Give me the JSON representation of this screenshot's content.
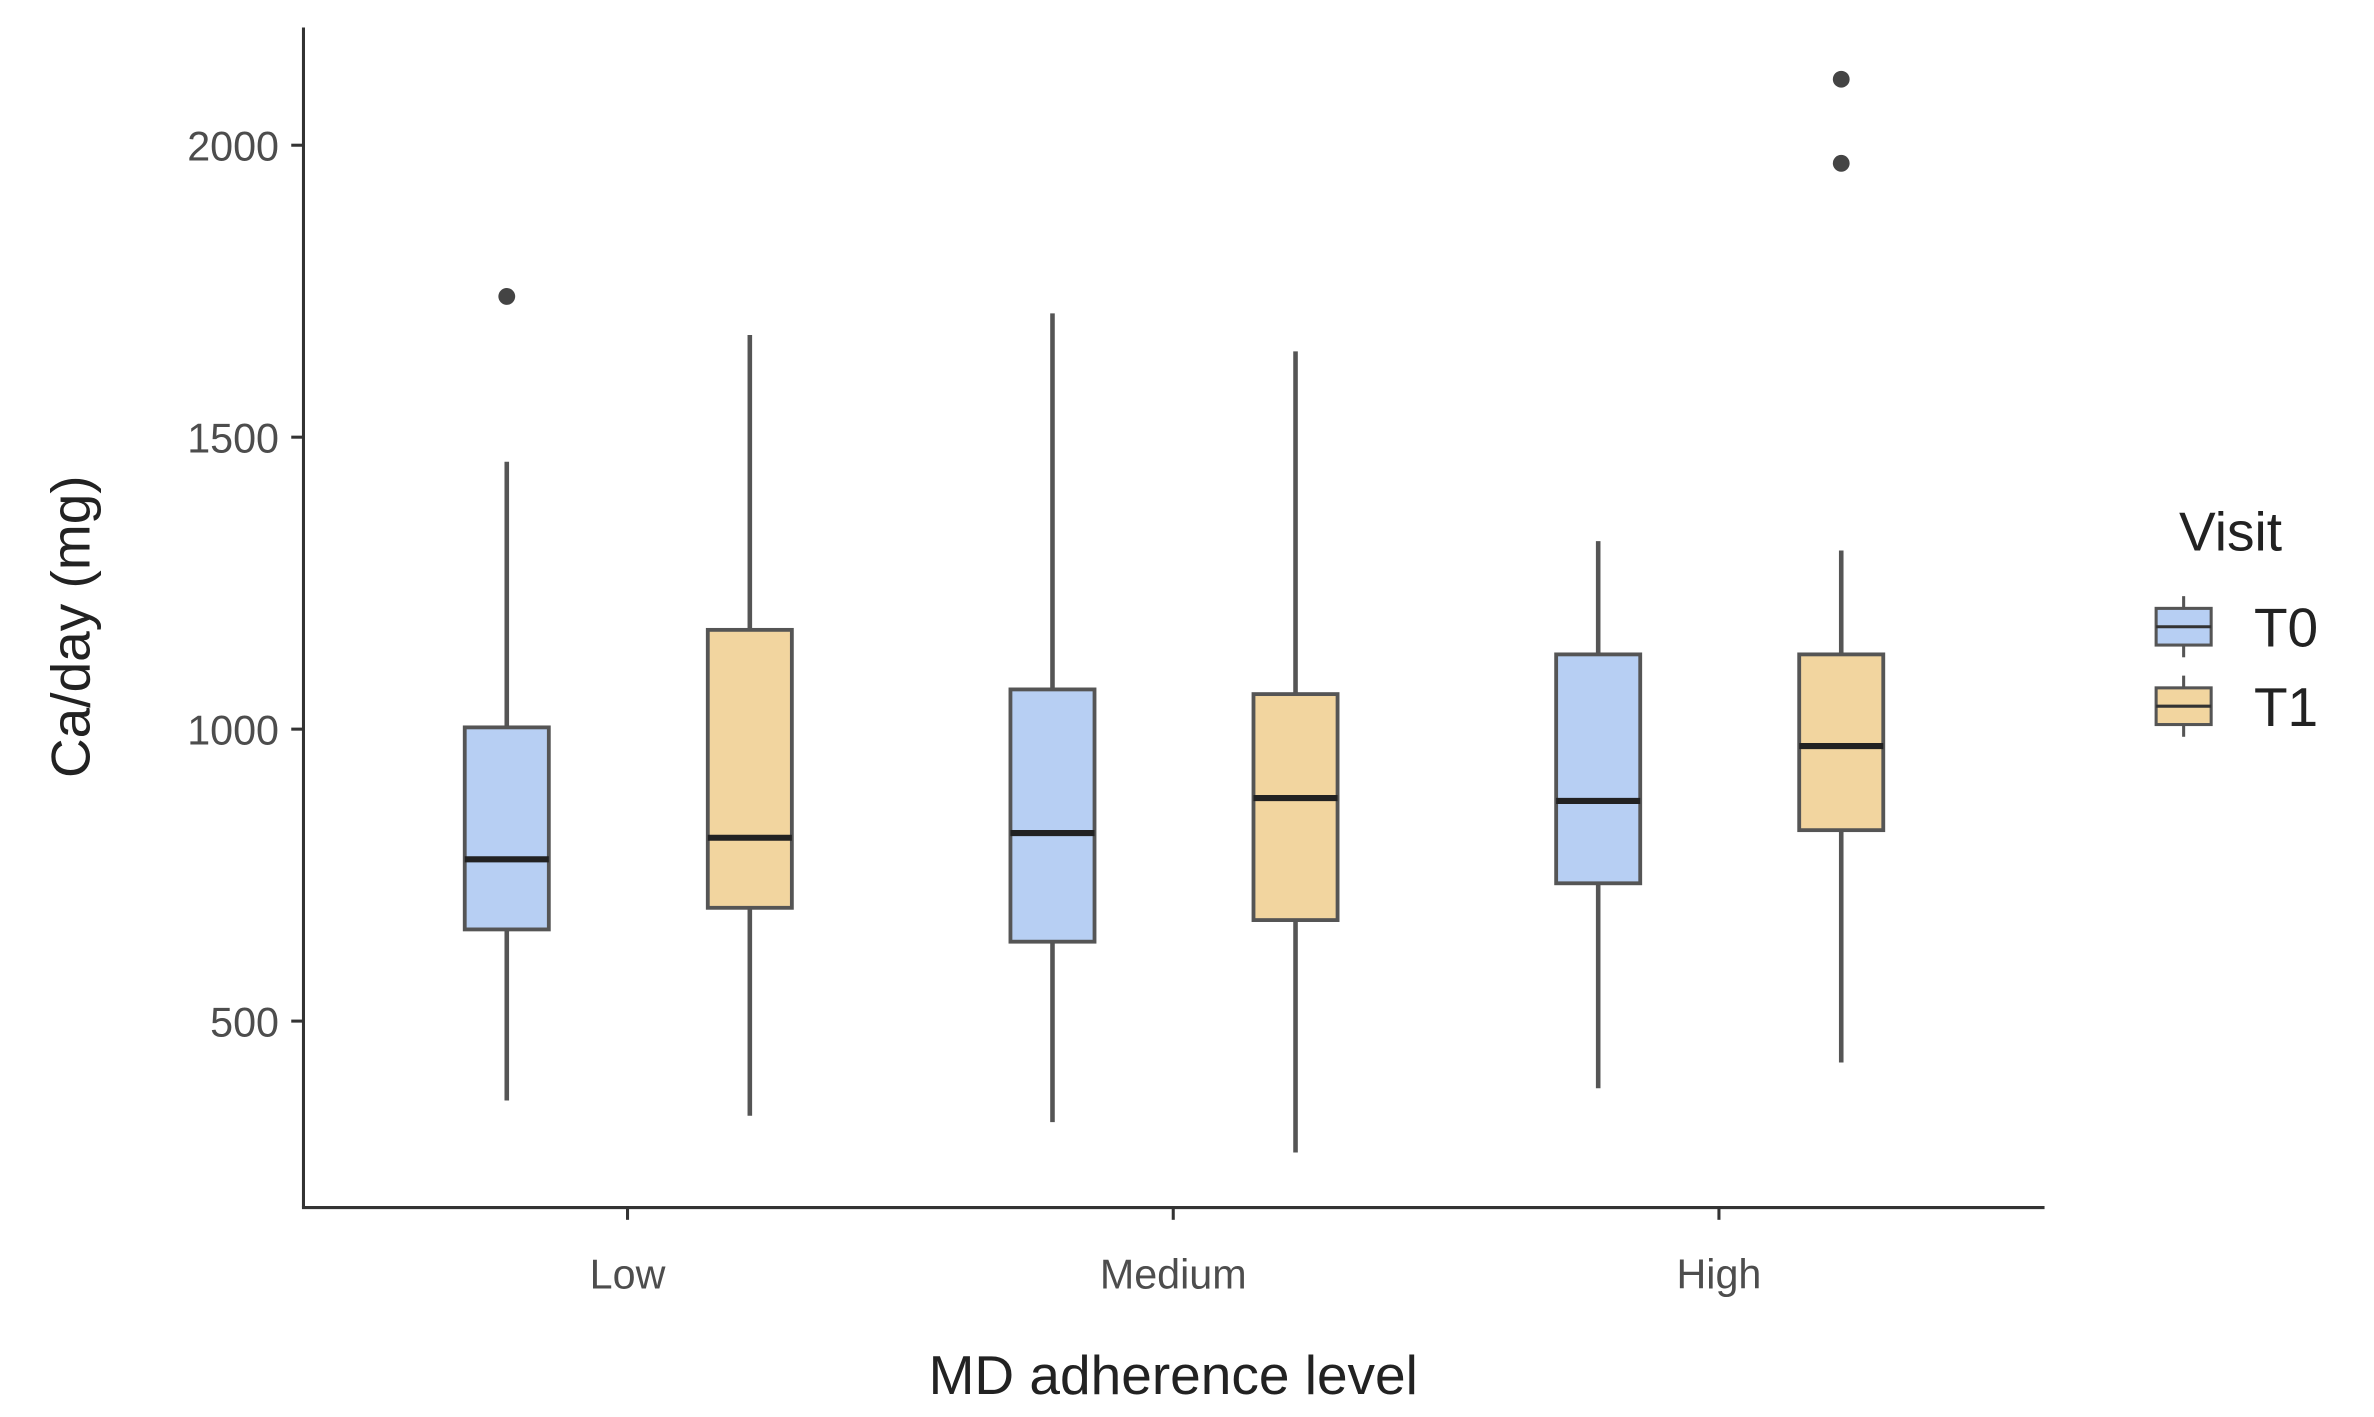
{
  "chart_data": {
    "type": "box",
    "title": "",
    "xlabel": "MD adherence level",
    "ylabel": "Ca/day (mg)",
    "ylim": [
      180,
      2200
    ],
    "yticks": [
      500,
      1000,
      1500,
      2000
    ],
    "categories": [
      "Low",
      "Medium",
      "High"
    ],
    "legend": {
      "title": "Visit",
      "position": "right"
    },
    "series": [
      {
        "name": "T0",
        "color": "#b7cff3",
        "boxes": [
          {
            "whisker_low": 364,
            "q1": 657,
            "median": 777,
            "q3": 1003,
            "whisker_high": 1458,
            "outliers": [
              1741
            ]
          },
          {
            "whisker_low": 327,
            "q1": 636,
            "median": 822,
            "q3": 1068,
            "whisker_high": 1712,
            "outliers": []
          },
          {
            "whisker_low": 385,
            "q1": 736,
            "median": 877,
            "q3": 1128,
            "whisker_high": 1322,
            "outliers": []
          }
        ]
      },
      {
        "name": "T1",
        "color": "#f2d59f",
        "boxes": [
          {
            "whisker_low": 338,
            "q1": 694,
            "median": 814,
            "q3": 1170,
            "whisker_high": 1675,
            "outliers": []
          },
          {
            "whisker_low": 275,
            "q1": 673,
            "median": 882,
            "q3": 1060,
            "whisker_high": 1647,
            "outliers": []
          },
          {
            "whisker_low": 429,
            "q1": 827,
            "median": 971,
            "q3": 1128,
            "whisker_high": 1306,
            "outliers": [
              1969,
              2113
            ]
          }
        ]
      }
    ]
  }
}
